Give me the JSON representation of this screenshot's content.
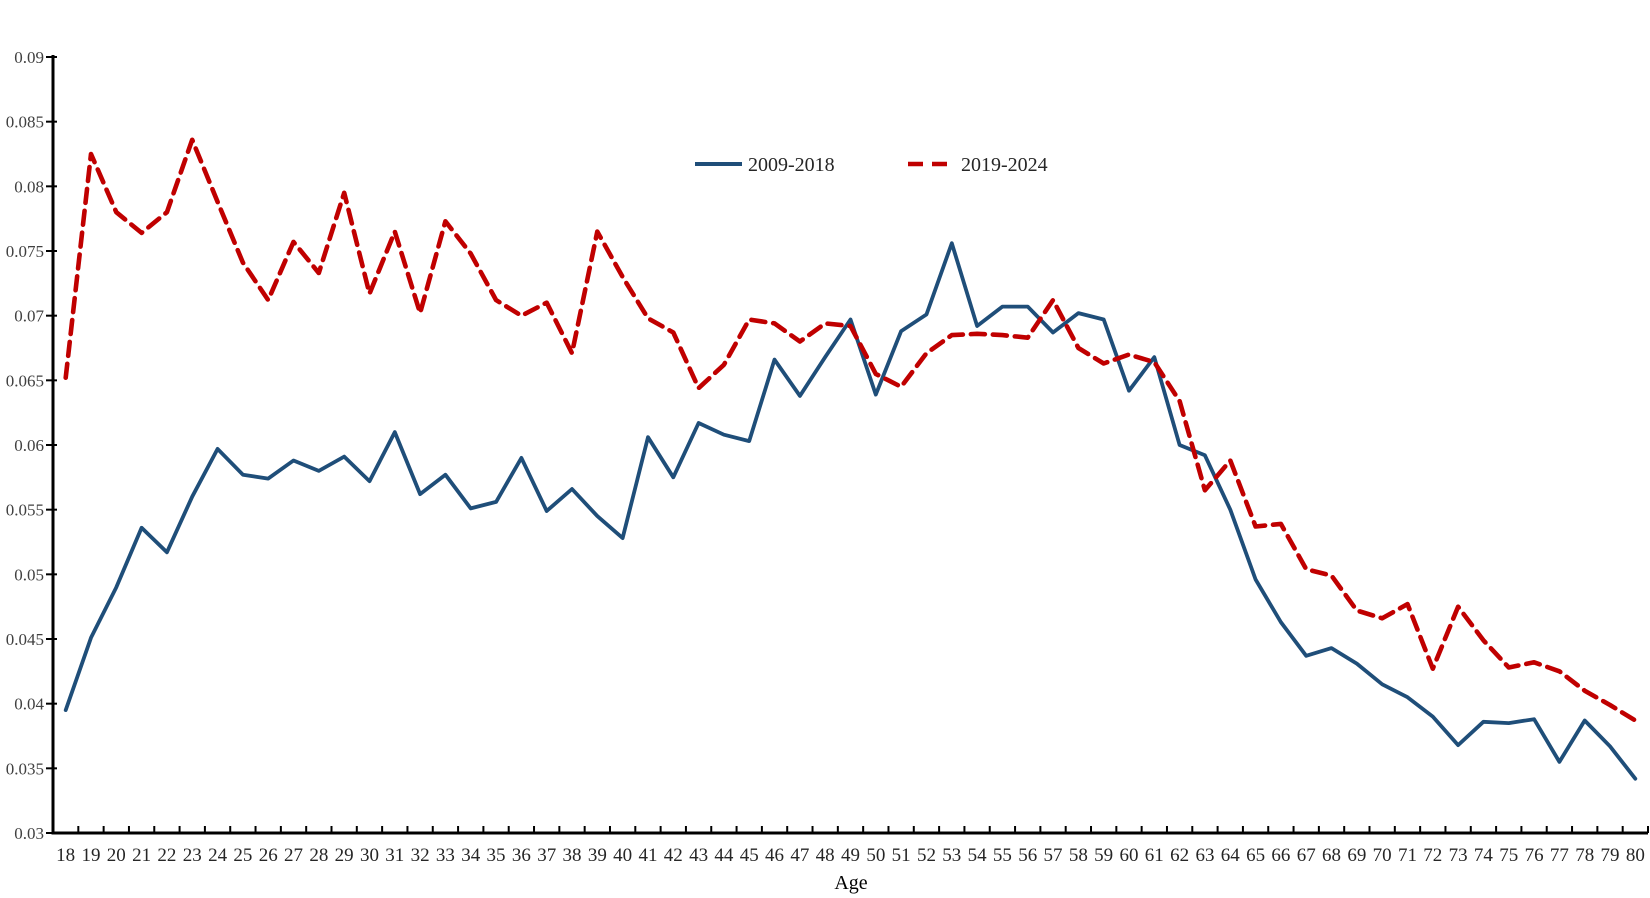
{
  "chart_data": {
    "type": "line",
    "title": "",
    "xlabel": "Age",
    "ylabel": "",
    "grid": false,
    "legend_position": "top-center",
    "ylim": [
      0.03,
      0.09
    ],
    "y_ticks": [
      0.03,
      0.035,
      0.04,
      0.045,
      0.05,
      0.055,
      0.06,
      0.065,
      0.07,
      0.075,
      0.08,
      0.085,
      0.09
    ],
    "x": [
      18,
      19,
      20,
      21,
      22,
      23,
      24,
      25,
      26,
      27,
      28,
      29,
      30,
      31,
      32,
      33,
      34,
      35,
      36,
      37,
      38,
      39,
      40,
      41,
      42,
      43,
      44,
      45,
      46,
      47,
      48,
      49,
      50,
      51,
      52,
      53,
      54,
      55,
      56,
      57,
      58,
      59,
      60,
      61,
      62,
      63,
      64,
      65,
      66,
      67,
      68,
      69,
      70,
      71,
      72,
      73,
      74,
      75,
      76,
      77,
      78,
      79,
      80
    ],
    "axis_color": "#000000",
    "tick_label_color": "#404040",
    "series": [
      {
        "name": "2009-2018",
        "style": "solid",
        "color": "#1f4e79",
        "values": [
          0.0395,
          0.0451,
          0.049,
          0.0536,
          0.0517,
          0.056,
          0.0597,
          0.0577,
          0.0574,
          0.0588,
          0.058,
          0.0591,
          0.0572,
          0.061,
          0.0562,
          0.0577,
          0.0551,
          0.0556,
          0.059,
          0.0549,
          0.0566,
          0.0545,
          0.0528,
          0.0606,
          0.0575,
          0.0617,
          0.0608,
          0.0603,
          0.0666,
          0.0638,
          0.0668,
          0.0697,
          0.0639,
          0.0688,
          0.0701,
          0.0756,
          0.0692,
          0.0707,
          0.0707,
          0.0687,
          0.0702,
          0.0697,
          0.0642,
          0.0668,
          0.06,
          0.0592,
          0.055,
          0.0496,
          0.0463,
          0.0437,
          0.0443,
          0.0431,
          0.0415,
          0.0405,
          0.039,
          0.0368,
          0.0386,
          0.0385,
          0.0388,
          0.0355,
          0.0387,
          0.0367,
          0.0342
        ]
      },
      {
        "name": "2019-2024",
        "style": "dashed",
        "color": "#c00000",
        "values": [
          0.0652,
          0.0825,
          0.078,
          0.0764,
          0.078,
          0.0836,
          0.0788,
          0.0741,
          0.0712,
          0.0757,
          0.0733,
          0.0795,
          0.0717,
          0.0765,
          0.0702,
          0.0773,
          0.0748,
          0.0712,
          0.07,
          0.071,
          0.0671,
          0.0765,
          0.073,
          0.0698,
          0.0687,
          0.0644,
          0.0662,
          0.0697,
          0.0694,
          0.068,
          0.0694,
          0.0692,
          0.0655,
          0.0645,
          0.0671,
          0.0685,
          0.0686,
          0.0685,
          0.0683,
          0.0712,
          0.0675,
          0.0663,
          0.067,
          0.0664,
          0.0634,
          0.0565,
          0.0588,
          0.0537,
          0.0539,
          0.0504,
          0.0499,
          0.0472,
          0.0466,
          0.0477,
          0.0427,
          0.0475,
          0.0449,
          0.0428,
          0.0432,
          0.0425,
          0.041,
          0.0399,
          0.0387
        ]
      }
    ]
  }
}
